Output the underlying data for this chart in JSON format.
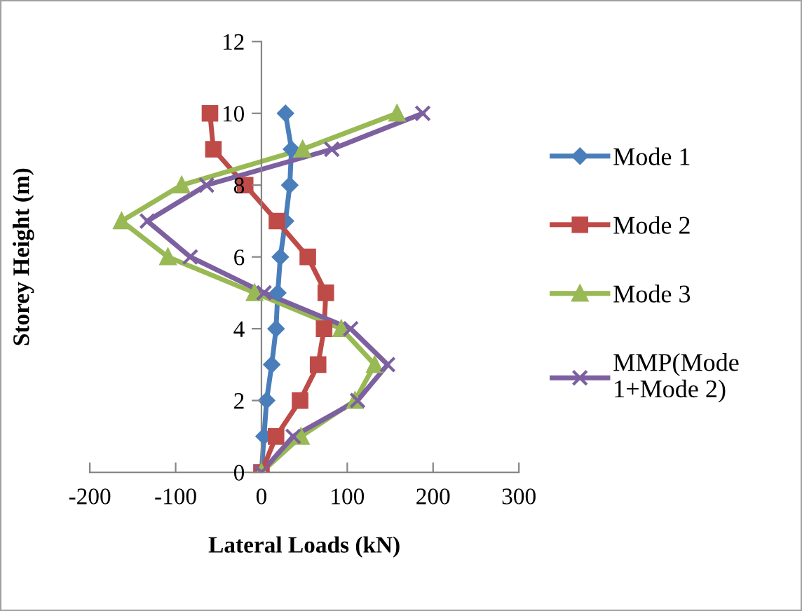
{
  "chart_data": {
    "type": "line",
    "xlabel": "Lateral Loads (kN)",
    "ylabel": "Storey Height (m)",
    "xlim": [
      -200,
      300
    ],
    "xticks": [
      -200,
      -100,
      0,
      100,
      200,
      300
    ],
    "ylim": [
      0,
      12
    ],
    "yticks": [
      0,
      2,
      4,
      6,
      8,
      10,
      12
    ],
    "grid": false,
    "legend": "right",
    "line_style": "solid",
    "series": [
      {
        "name": "Mode 1",
        "color": "#4a7ebb",
        "marker": "diamond",
        "x": [
          0,
          3,
          6,
          12,
          17,
          19,
          22,
          28,
          33,
          35,
          28
        ],
        "values": [
          0,
          1,
          2,
          3,
          4,
          5,
          6,
          7,
          8,
          9,
          10
        ]
      },
      {
        "name": "Mode 2",
        "color": "#be4b48",
        "marker": "square",
        "x": [
          0,
          17,
          45,
          66,
          73,
          75,
          54,
          18,
          -19,
          -56,
          -60
        ],
        "values": [
          0,
          1,
          2,
          3,
          4,
          5,
          6,
          7,
          8,
          9,
          10
        ]
      },
      {
        "name": "Mode 3",
        "color": "#98b954",
        "marker": "triangle",
        "x": [
          0,
          46,
          109,
          132,
          93,
          -8,
          -109,
          -163,
          -93,
          48,
          158
        ],
        "values": [
          0,
          1,
          2,
          3,
          4,
          5,
          6,
          7,
          8,
          9,
          10
        ]
      },
      {
        "name": "MMP(Mode\n1+Mode 2)",
        "color": "#7d60a0",
        "marker": "cross",
        "x": [
          0,
          37,
          112,
          147,
          104,
          3,
          -83,
          -133,
          -64,
          82,
          188
        ],
        "values": [
          0,
          1,
          2,
          3,
          4,
          5,
          6,
          7,
          8,
          9,
          10
        ]
      }
    ]
  }
}
